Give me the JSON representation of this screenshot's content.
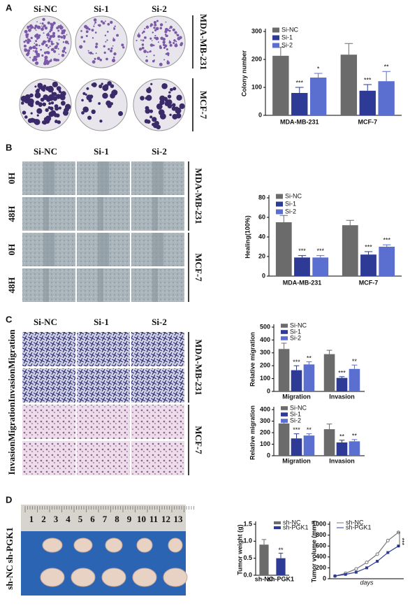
{
  "panels": {
    "A": {
      "letter": "A",
      "columns": [
        "Si-NC",
        "Si-1",
        "Si-2"
      ],
      "groups": [
        "MDA-MB-231",
        "MCF-7"
      ]
    },
    "B": {
      "letter": "B",
      "columns": [
        "Si-NC",
        "Si-1",
        "Si-2"
      ],
      "row_labels": [
        "0H",
        "48H",
        "0H",
        "48H"
      ],
      "groups": [
        "MDA-MB-231",
        "MCF-7"
      ]
    },
    "C": {
      "letter": "C",
      "columns": [
        "Si-NC",
        "Si-1",
        "Si-2"
      ],
      "row_labels": [
        "Migration",
        "Invasion",
        "Migration",
        "Invasion"
      ],
      "groups": [
        "MDA-MB-231",
        "MCF-7"
      ]
    },
    "D": {
      "letter": "D",
      "rows": [
        "sh-PGK1",
        "sh-NC"
      ],
      "ruler": [
        1,
        2,
        3,
        4,
        5,
        6,
        7,
        8,
        9,
        10,
        11,
        12,
        13
      ]
    }
  },
  "chart_data": [
    {
      "type": "bar",
      "ylabel": "Colony number",
      "categories": [
        "MDA-MB-231",
        "MCF-7"
      ],
      "ylim": [
        0,
        300
      ],
      "yticks": [
        0,
        100,
        200,
        300
      ],
      "legend": "top-left",
      "series": [
        {
          "name": "Si-NC",
          "color": "#6b6b6b",
          "values": [
            213,
            217
          ],
          "errors": [
            30,
            40
          ],
          "significance": [
            null,
            null
          ]
        },
        {
          "name": "Si-1",
          "color": "#2d3a96",
          "values": [
            80,
            88
          ],
          "errors": [
            20,
            22
          ],
          "significance": [
            "***",
            "***"
          ]
        },
        {
          "name": "Si-2",
          "color": "#5b6fd1",
          "values": [
            135,
            122
          ],
          "errors": [
            15,
            35
          ],
          "significance": [
            "*",
            "**"
          ]
        }
      ]
    },
    {
      "type": "bar",
      "ylabel": "Healing(100%)",
      "categories": [
        "MDA-MB-231",
        "MCF-7"
      ],
      "ylim": [
        0,
        80
      ],
      "yticks": [
        0,
        20,
        40,
        60,
        80
      ],
      "legend": "top-left",
      "series": [
        {
          "name": "Si-NC",
          "color": "#6b6b6b",
          "values": [
            55,
            52
          ],
          "errors": [
            7,
            5
          ],
          "significance": [
            null,
            null
          ]
        },
        {
          "name": "Si-1",
          "color": "#2d3a96",
          "values": [
            19,
            22
          ],
          "errors": [
            2,
            3
          ],
          "significance": [
            "***",
            "***"
          ]
        },
        {
          "name": "Si-2",
          "color": "#5b6fd1",
          "values": [
            19,
            30
          ],
          "errors": [
            2,
            2
          ],
          "significance": [
            "***",
            "***"
          ]
        }
      ]
    },
    {
      "type": "bar",
      "ylabel": "Relative migration",
      "categories": [
        "Migration",
        "Invasion"
      ],
      "ylim": [
        0,
        500
      ],
      "yticks": [
        0,
        100,
        200,
        300,
        400,
        500
      ],
      "legend": "top-left",
      "series": [
        {
          "name": "Si-NC",
          "color": "#6b6b6b",
          "values": [
            330,
            290
          ],
          "errors": [
            45,
            30
          ],
          "significance": [
            null,
            null
          ]
        },
        {
          "name": "Si-1",
          "color": "#2d3a96",
          "values": [
            165,
            105
          ],
          "errors": [
            35,
            10
          ],
          "significance": [
            "***",
            "***"
          ]
        },
        {
          "name": "Si-2",
          "color": "#5b6fd1",
          "values": [
            210,
            175
          ],
          "errors": [
            20,
            30
          ],
          "significance": [
            "**",
            "**"
          ]
        }
      ]
    },
    {
      "type": "bar",
      "ylabel": "Relative migration",
      "categories": [
        "Migration",
        "Invasion"
      ],
      "ylim": [
        0,
        400
      ],
      "yticks": [
        0,
        100,
        200,
        300,
        400
      ],
      "legend": "top-left",
      "series": [
        {
          "name": "Si-NC",
          "color": "#6b6b6b",
          "values": [
            280,
            230
          ],
          "errors": [
            20,
            45
          ],
          "significance": [
            null,
            null
          ]
        },
        {
          "name": "Si-1",
          "color": "#2d3a96",
          "values": [
            150,
            115
          ],
          "errors": [
            40,
            20
          ],
          "significance": [
            "***",
            "**"
          ]
        },
        {
          "name": "Si-2",
          "color": "#5b6fd1",
          "values": [
            175,
            125
          ],
          "errors": [
            15,
            15
          ],
          "significance": [
            "**",
            "**"
          ]
        }
      ]
    },
    {
      "type": "bar",
      "ylabel": "Tumor weight (g)",
      "categories": [
        "sh-NC",
        "sh-PGK1"
      ],
      "values": [
        0.9,
        0.5
      ],
      "errors": [
        0.15,
        0.15
      ],
      "significance": [
        null,
        "**"
      ],
      "colors": [
        "#6b6b6b",
        "#2d3a96"
      ],
      "legend_labels": [
        "sh-NC",
        "sh-PGK1"
      ],
      "legend": "top-right",
      "ylim": [
        0,
        1.5
      ],
      "yticks": [
        {
          "value": 0,
          "label": "0.0"
        },
        {
          "value": 0.5,
          "label": "0.5"
        },
        {
          "value": 1,
          "label": "1.0"
        },
        {
          "value": 1.5,
          "label": "1.5"
        }
      ]
    },
    {
      "type": "line",
      "ylabel": "Tumor volume (mm³)",
      "xlabel": "days",
      "categories": [
        null,
        null,
        null,
        null,
        null,
        null,
        null
      ],
      "ylim": [
        0,
        1000
      ],
      "yticks": [
        0,
        200,
        400,
        600,
        800,
        1000
      ],
      "legend": "top-left",
      "annotation": "***",
      "series": [
        {
          "name": "sh-NC",
          "color": "#777777",
          "values": [
            50,
            100,
            180,
            300,
            450,
            700,
            850
          ]
        },
        {
          "name": "sh-PGK1",
          "color": "#2d3a96",
          "values": [
            50,
            80,
            120,
            200,
            320,
            480,
            600
          ]
        }
      ]
    }
  ]
}
